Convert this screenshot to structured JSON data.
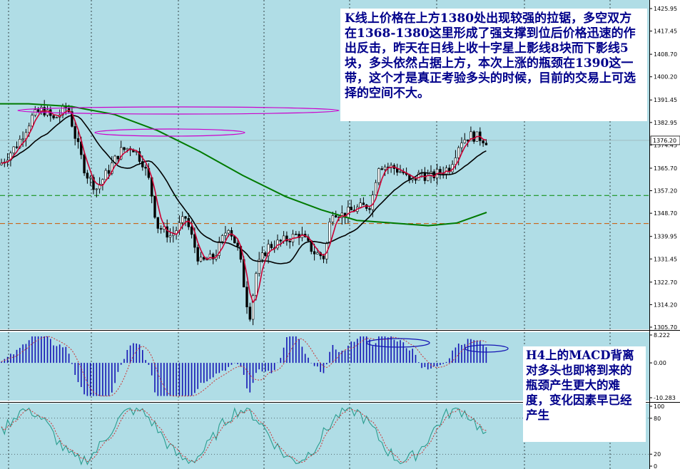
{
  "chart_data": [
    {
      "type": "candlestick",
      "panel": "price",
      "y_ticks": [
        "1425.95",
        "1417.45",
        "1408.70",
        "1400.20",
        "1391.45",
        "1382.95",
        "1374.45",
        "1365.70",
        "1357.20",
        "1348.70",
        "1339.95",
        "1331.45",
        "1322.70",
        "1314.20",
        "1305.70"
      ],
      "ylim": [
        1305.7,
        1425.95
      ],
      "last_price": "1376.20",
      "series": [
        {
          "name": "",
          "color": "#cc0033",
          "style": "short moving average"
        },
        {
          "name": "",
          "color": "#000000",
          "style": "medium moving average"
        },
        {
          "name": "",
          "color": "#007a00",
          "style": "long moving average"
        }
      ],
      "horizontal_lines": [
        {
          "value": 1355.4,
          "color": "#008800",
          "style": "dashed"
        },
        {
          "value": 1344.8,
          "color": "#cc5500",
          "style": "dashed"
        }
      ],
      "annotation": "K线上价格在上方1380处出现较强的拉锯，多空双方在1368-1380这里形成了强支撑到位后价格迅速的作出反击，昨天在日线上收十字星上影线8块而下影线5块，多头依然占据上方，本次上涨的瓶颈在1390这一带，这个才是真正考验多头的时候，目前的交易上可选择的空间不大。"
    },
    {
      "type": "bar",
      "panel": "MACD",
      "y_ticks": [
        "8.222",
        "0.00",
        "-10.283"
      ],
      "ylim": [
        -10.283,
        8.222
      ],
      "bar_color": "#1414b4",
      "signal_color": "#cc3333",
      "annotation": "H4上的MACD背离对多头也即将到来的瓶颈产生更大的难度，变化因素早已经产生"
    },
    {
      "type": "line",
      "panel": "stochastic",
      "y_ticks": [
        "100",
        "80",
        "20",
        "0"
      ],
      "ylim": [
        0,
        100
      ],
      "main_color": "#2a9d8f",
      "signal_color": "#cc3333"
    }
  ]
}
